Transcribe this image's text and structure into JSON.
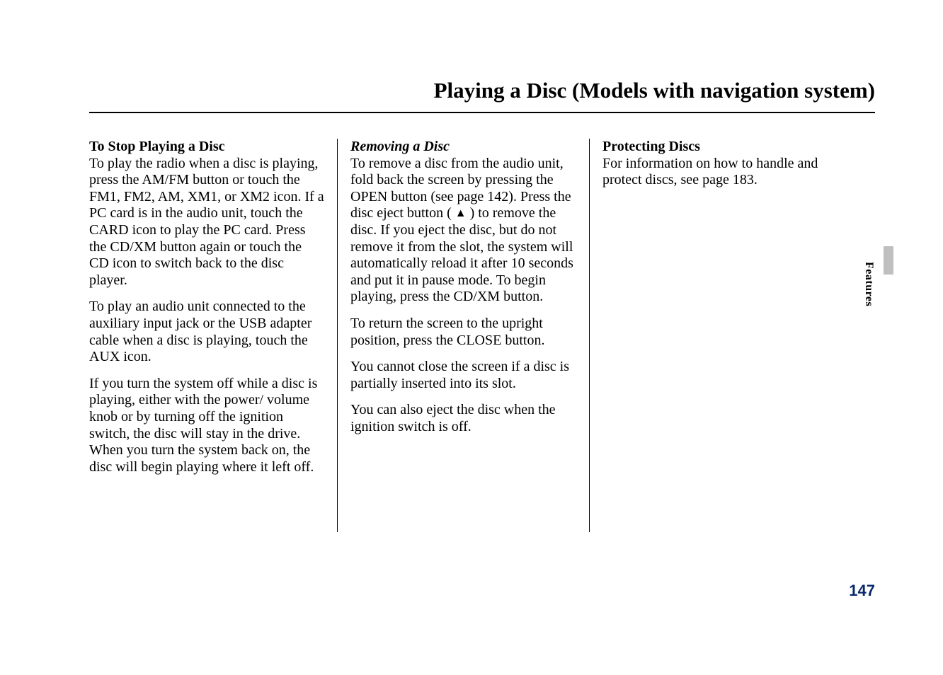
{
  "header": {
    "title": "Playing a Disc (Models with navigation system)"
  },
  "col1": {
    "h1": "To Stop Playing a Disc",
    "p1": "To play the radio when a disc is playing, press the AM/FM button or touch the FM1, FM2, AM, XM1, or XM2 icon. If a PC card is in the audio unit, touch the CARD icon to play the PC card. Press the CD/XM button again or touch the CD icon to switch back to the disc player.",
    "p2": "To play an audio unit connected to the auxiliary input jack or the USB adapter cable when a disc is playing, touch the AUX icon.",
    "p3": "If you turn the system off while a disc is playing, either with the power/ volume knob or by turning off the ignition switch, the disc will stay in the drive. When you turn the system back on, the disc will begin playing where it left off."
  },
  "col2": {
    "h1": "Removing a Disc",
    "p1a": "To remove a disc from the audio unit, fold back the screen by pressing the OPEN button (see page 142). Press the disc eject button (",
    "eject": "▲",
    "p1b": ") to remove the disc. If you eject the disc, but do not remove it from the slot, the system will automatically reload it after 10 seconds and put it in pause mode. To begin playing, press the CD/XM button.",
    "p2": "To return the screen to the upright position, press the CLOSE button.",
    "p3": "You cannot close the screen if a disc is partially inserted into its slot.",
    "p4": "You can also eject the disc when the ignition switch is off."
  },
  "col3": {
    "h1": "Protecting Discs",
    "p1": "For information on how to handle and protect discs, see page 183."
  },
  "side": {
    "label": "Features"
  },
  "footer": {
    "page": "147"
  },
  "style": {
    "page_num_color": "#0a2a6b",
    "tab_gray": "#bfbfbf",
    "rule_color": "#000000"
  }
}
